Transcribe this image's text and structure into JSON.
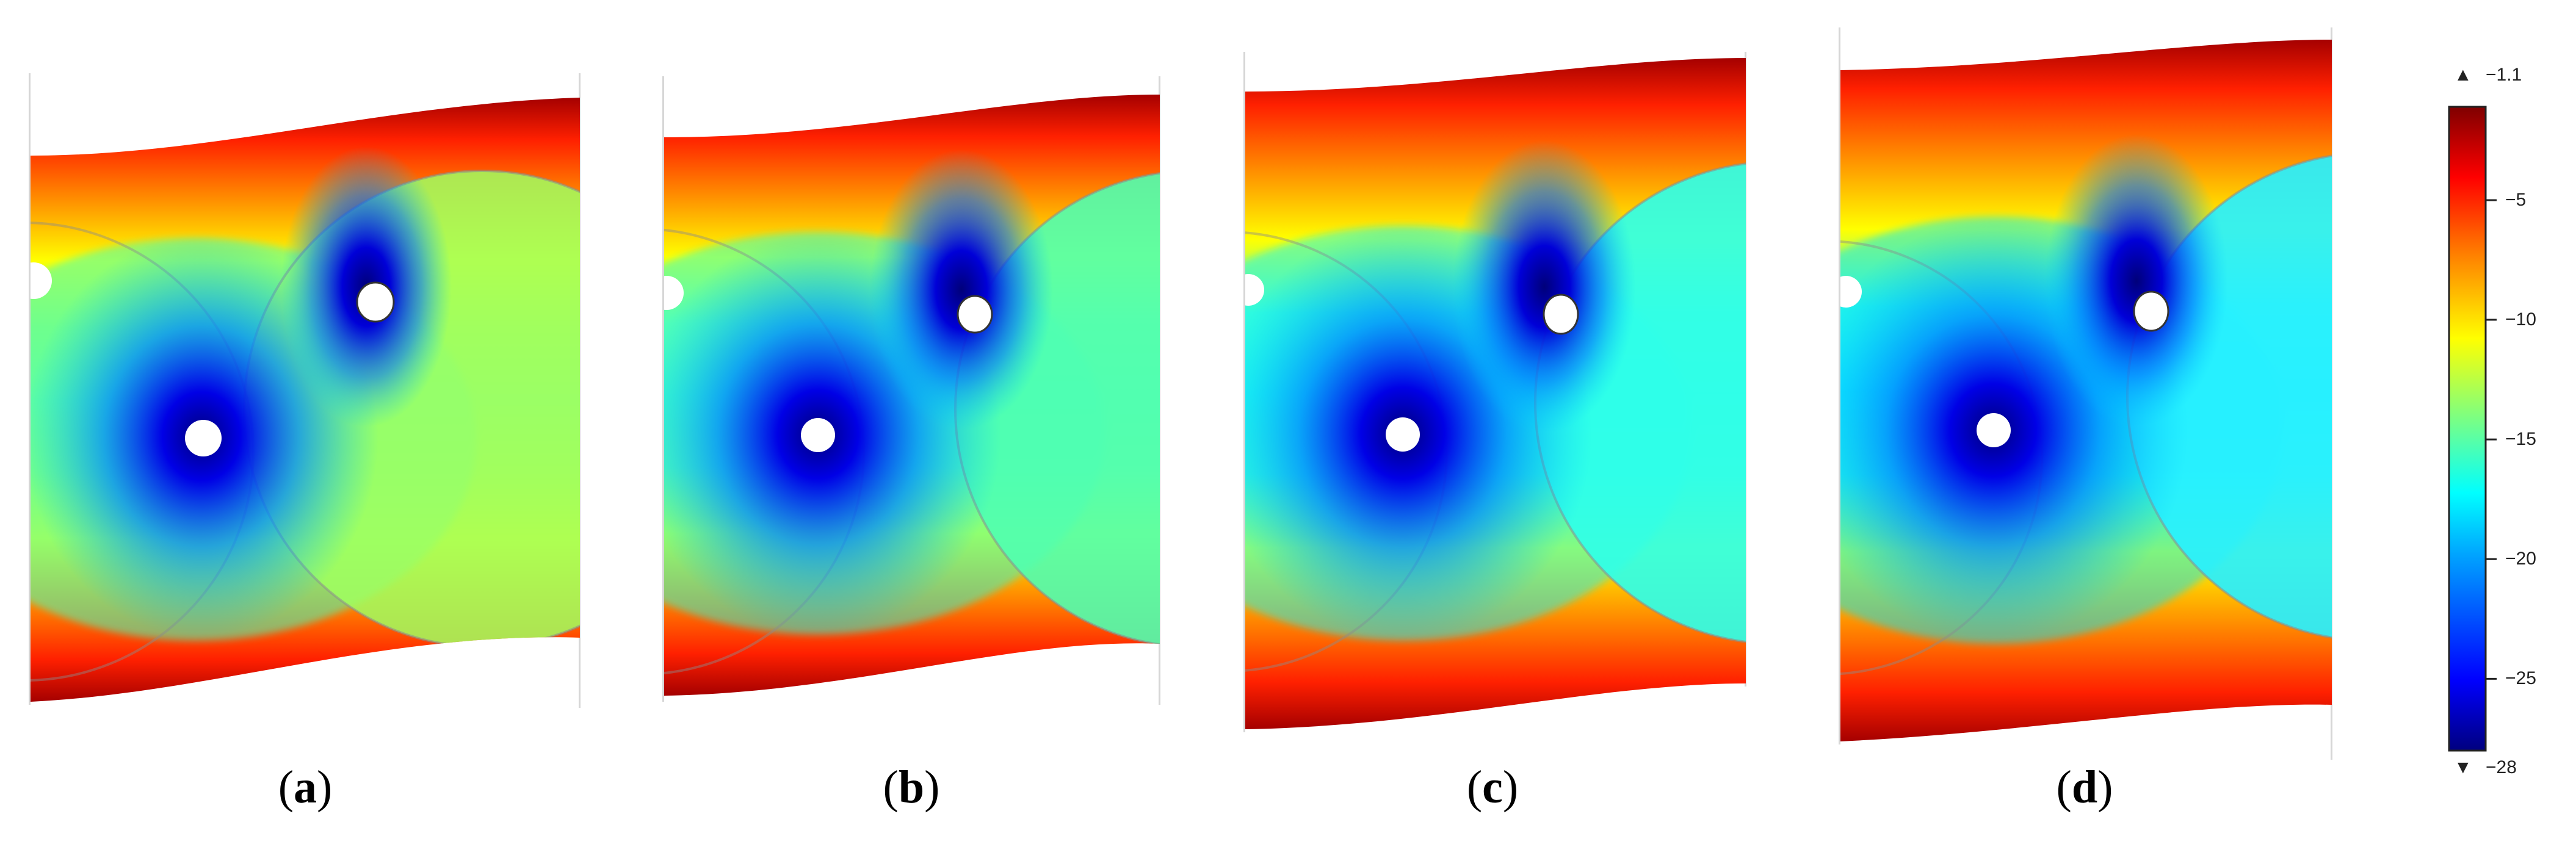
{
  "figure": {
    "panels": [
      {
        "id": "a",
        "label_open": "(",
        "label_letter": "a",
        "label_close": ")"
      },
      {
        "id": "b",
        "label_open": "(",
        "label_letter": "b",
        "label_close": ")"
      },
      {
        "id": "c",
        "label_open": "(",
        "label_letter": "c",
        "label_close": ")"
      },
      {
        "id": "d",
        "label_open": "(",
        "label_letter": "d",
        "label_close": ")"
      }
    ]
  },
  "colorbar": {
    "max_label": "−1.1",
    "min_label": "−28",
    "max_arrow": "▲",
    "min_arrow": "▼",
    "ticks": [
      {
        "value": -5,
        "label": "−5"
      },
      {
        "value": -10,
        "label": "−10"
      },
      {
        "value": -15,
        "label": "−15"
      },
      {
        "value": -20,
        "label": "−20"
      },
      {
        "value": -25,
        "label": "−25"
      }
    ],
    "range": [
      -28,
      -1.1
    ],
    "colormap": [
      "#00007f",
      "#0000ff",
      "#00a0ff",
      "#00ffff",
      "#7fff7f",
      "#ffff00",
      "#ff8000",
      "#ff0000",
      "#7f0000"
    ]
  }
}
